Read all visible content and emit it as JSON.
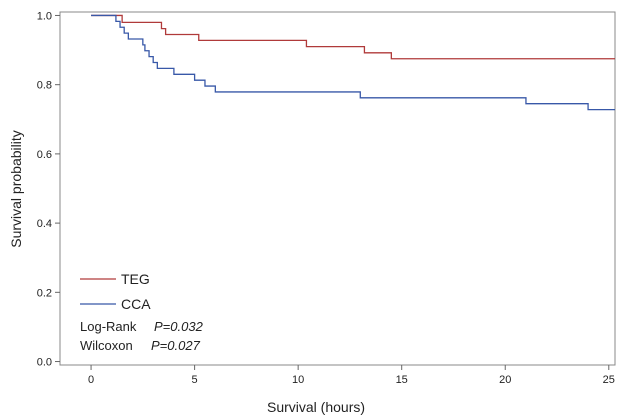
{
  "chart_data": {
    "type": "line",
    "step": true,
    "xlabel": "Survival (hours)",
    "ylabel": "Survival probability",
    "xlim": [
      -1.5,
      25.3
    ],
    "ylim": [
      -0.01,
      1.01
    ],
    "xticks": [
      0,
      5,
      10,
      15,
      20,
      25
    ],
    "yticks": [
      0.0,
      0.2,
      0.4,
      0.6,
      0.8,
      1.0
    ],
    "ytick_labels": [
      "0.0",
      "0.2",
      "0.4",
      "0.6",
      "0.8",
      "1.0"
    ],
    "xtick_labels": [
      "0",
      "5",
      "10",
      "15",
      "20",
      "25"
    ],
    "grid": false,
    "legend_position": "bottom-left",
    "series": [
      {
        "name": "TEG",
        "color": "#b03a3a",
        "x": [
          0,
          1.5,
          3.4,
          3.6,
          5.2,
          10.4,
          13.2,
          14.5,
          25.3
        ],
        "y": [
          1.0,
          0.98,
          0.962,
          0.945,
          0.928,
          0.91,
          0.892,
          0.875,
          0.875
        ]
      },
      {
        "name": "CCA",
        "color": "#3858a8",
        "x": [
          0,
          1.2,
          1.4,
          1.6,
          1.8,
          2.5,
          2.6,
          2.8,
          3.0,
          3.2,
          4.0,
          4.5,
          5.0,
          5.5,
          6.0,
          13.0,
          21.0,
          24.0,
          25.3
        ],
        "y": [
          1.0,
          0.983,
          0.966,
          0.949,
          0.932,
          0.915,
          0.898,
          0.881,
          0.864,
          0.847,
          0.83,
          0.83,
          0.813,
          0.796,
          0.779,
          0.762,
          0.745,
          0.728,
          0.728
        ]
      }
    ],
    "annotations": [
      {
        "label": "Log-Rank",
        "p_value": "P=0.032"
      },
      {
        "label": "Wilcoxon",
        "p_value": "P=0.027"
      }
    ]
  }
}
